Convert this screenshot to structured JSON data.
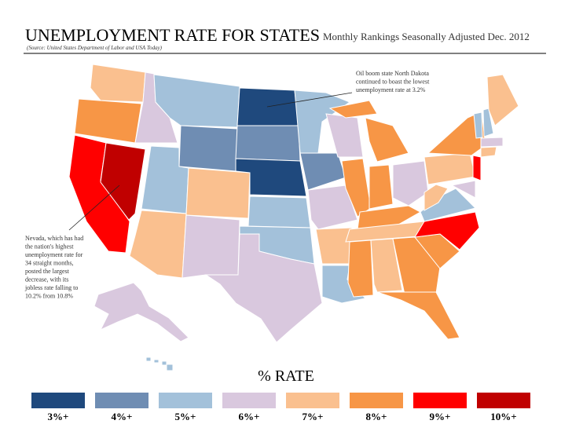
{
  "header": {
    "title": "UNEMPLOYMENT RATE FOR STATES",
    "subtitle": "Monthly Rankings Seasonally Adjusted Dec. 2012",
    "source": "(Source: United States Department of Labor and USA Today)"
  },
  "annotations": [
    {
      "lines": [
        "Oil boom state North Dakota",
        "continued to boast the lowest",
        "unemployment rate at 3.2%"
      ]
    },
    {
      "lines": [
        "Nevada, which has had",
        "the nation's highest",
        "unemployment rate for",
        "34 straight months,",
        "posted the largest",
        "decrease, with its",
        "jobless rate falling to",
        "10.2% from 10.8%"
      ]
    }
  ],
  "legend": {
    "title": "% RATE",
    "items": [
      {
        "label": "3%+",
        "color": "#1f497d"
      },
      {
        "label": "4%+",
        "color": "#6f8db3"
      },
      {
        "label": "5%+",
        "color": "#a3c1da"
      },
      {
        "label": "6%+",
        "color": "#d9c8de"
      },
      {
        "label": "7%+",
        "color": "#fac08f"
      },
      {
        "label": "8%+",
        "color": "#f79646"
      },
      {
        "label": "9%+",
        "color": "#ff0000"
      },
      {
        "label": "10%+",
        "color": "#c00000"
      }
    ]
  }
}
